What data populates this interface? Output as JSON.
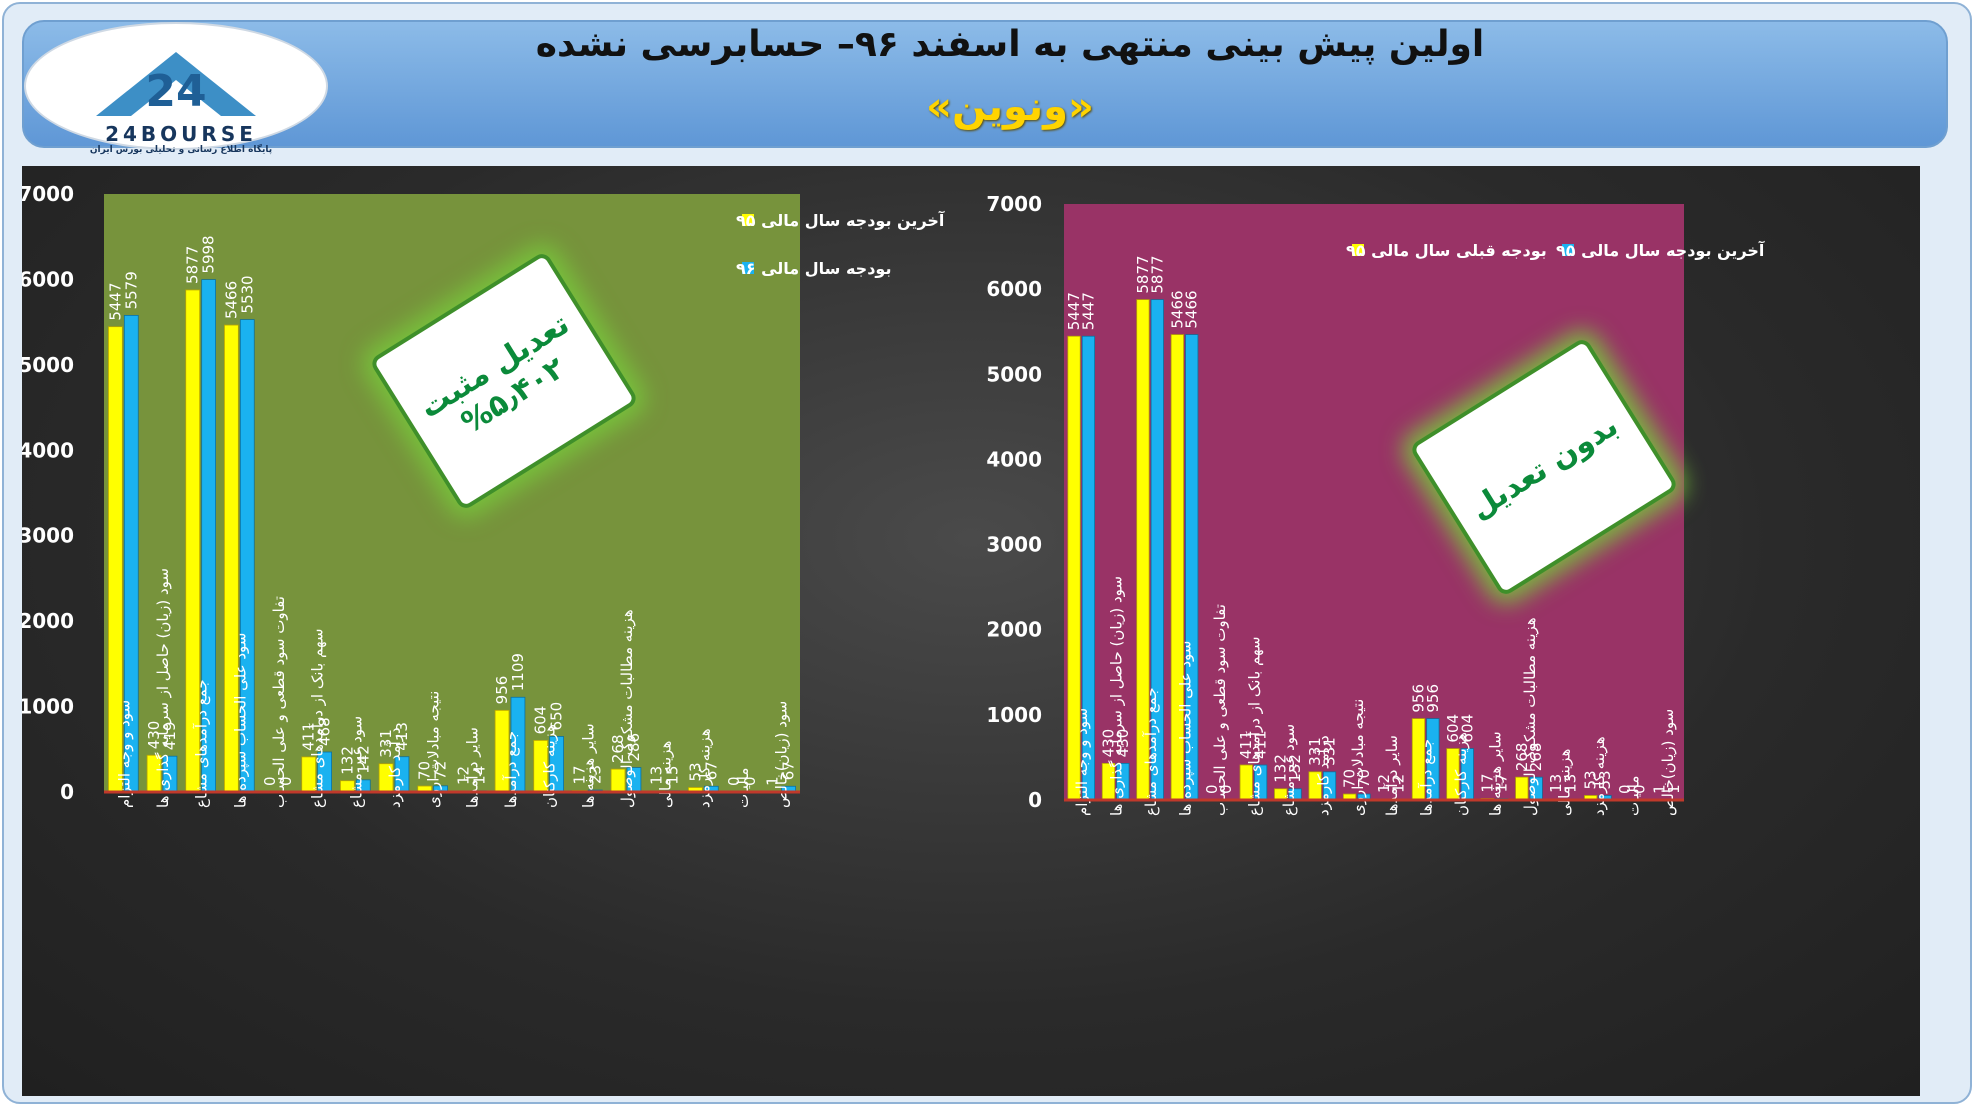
{
  "header": {
    "title": "اولین پیش بینی منتهی به اسفند ۹۶– حسابرسی نشده",
    "subtitle": "«ونوین»",
    "logo_text": "24BOURSE",
    "logo_subtext": "پایگاه اطلاع رسانی و تحلیلی بورس ایران"
  },
  "badges": {
    "left_line1": "تعدیل مثبت",
    "left_line2": "%۵٫۴۰۲",
    "right_line1": "بدون تعدیل"
  },
  "colors": {
    "series_yellow": "#ffff00",
    "series_blue": "#1ab2f0",
    "left_plot_bg": "#77933c",
    "right_plot_bg": "#993366",
    "badge_green": "#0b8a3a"
  },
  "chart_data": [
    {
      "type": "bar",
      "title": "",
      "categories": [
        "سود و وجه التزام",
        "سود (زیان) حاصل از سرمایه گذاری ها",
        "جمع درآمدهای مشاع",
        "سود علی الحساب سپرده ها",
        "تفاوت سود قطعی و علی الحساب",
        "سهم بانک از درآمدهای مشاع",
        "سود غیر مشاع",
        "درآمد کارمزد",
        "نتیجه مبادلات ارزی",
        "سایر درآمدها",
        "جمع درآمدها",
        "هزینه کارکنان",
        "سایر هزینه ها",
        "هزینه مطالبات مشکوک الوصول",
        "هزینه مالی",
        "هزینه کارمزد",
        "مالیات",
        "سود (زیان)خالص"
      ],
      "series": [
        {
          "name": "آخرین بودجه سال مالی ۹۵",
          "values": [
            5447,
            430,
            5877,
            5466,
            0,
            411,
            132,
            331,
            70,
            12,
            956,
            604,
            17,
            268,
            13,
            53,
            0,
            1
          ]
        },
        {
          "name": "بودجه سال مالی ۹۶",
          "values": [
            5579,
            419,
            5998,
            5530,
            0,
            468,
            142,
            413,
            72,
            14,
            1109,
            650,
            23,
            286,
            15,
            67,
            0,
            67
          ]
        }
      ],
      "ylim": [
        0,
        7000
      ],
      "yticks": [
        0,
        1000,
        2000,
        3000,
        4000,
        5000,
        6000,
        7000
      ],
      "legend_position": "top-right",
      "grid": false
    },
    {
      "type": "bar",
      "title": "",
      "categories": [
        "سود و وجه التزام",
        "سود (زیان) حاصل از سرمایه گذاری ها",
        "جمع درآمدهای مشاع",
        "سود علی الحساب سپرده ها",
        "تفاوت سود قطعی و علی الحساب",
        "سهم بانک از درآمدهای مشاع",
        "سود غیر مشاع",
        "درآمد کارمزد",
        "نتیجه مبادلات ارزی",
        "سایر درآمدها",
        "جمع درآمدها",
        "هزینه کارکنان",
        "سایر هزینه ها",
        "هزینه مطالبات مشکوک الوصول",
        "هزینه مالی",
        "هزینه کارمزد",
        "مالیات",
        "سود (زیان)خالص"
      ],
      "series": [
        {
          "name": "بودجه قبلی سال مالی ۹۵",
          "values": [
            5447,
            430,
            5877,
            5466,
            0,
            411,
            132,
            331,
            70,
            12,
            956,
            604,
            17,
            268,
            13,
            53,
            0,
            1
          ]
        },
        {
          "name": "آخرین بودجه سال مالی ۹۵",
          "values": [
            5447,
            430,
            5877,
            5466,
            0,
            411,
            132,
            331,
            70,
            12,
            956,
            604,
            17,
            268,
            13,
            53,
            0,
            1
          ]
        }
      ],
      "ylim": [
        0,
        7000
      ],
      "yticks": [
        0,
        1000,
        2000,
        3000,
        4000,
        5000,
        6000,
        7000
      ],
      "legend_position": "top-right",
      "grid": false
    }
  ]
}
